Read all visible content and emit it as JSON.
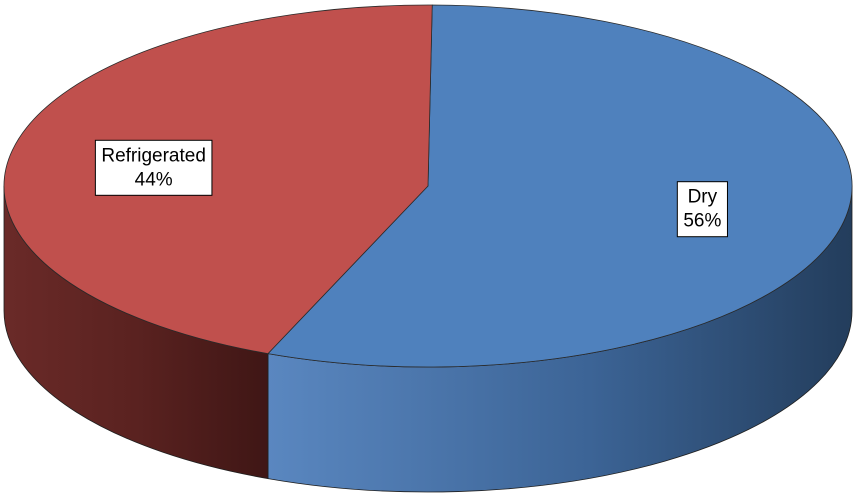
{
  "chart_data": {
    "type": "pie",
    "style": "3d",
    "title": "",
    "slices": [
      {
        "label": "Dry",
        "value": 56,
        "display": "56%",
        "color": "#4f81bd"
      },
      {
        "label": "Refrigerated",
        "value": 44,
        "display": "44%",
        "color": "#c0504d"
      }
    ],
    "legend": "none"
  }
}
